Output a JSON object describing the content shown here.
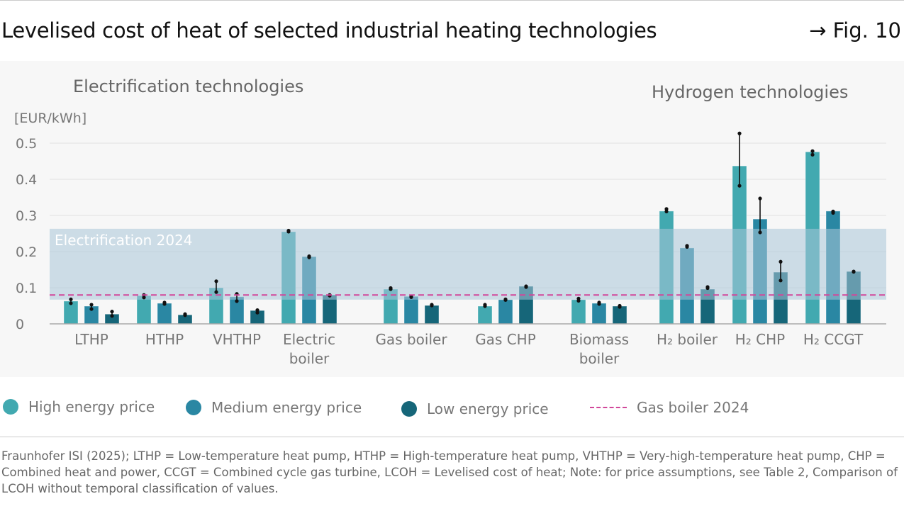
{
  "header": {
    "title": "Levelised cost of heat of selected industrial heating technologies",
    "fig_ref": "→ Fig. 10"
  },
  "chart_data": {
    "type": "bar",
    "ylabel": "[EUR/kWh]",
    "ylim": [
      0,
      0.5
    ],
    "yticks": [
      "0",
      "0.1",
      "0.2",
      "0.3",
      "0.4",
      "0.5"
    ],
    "grid": true,
    "sections": [
      "Electrification technologies",
      "Hydrogen technologies"
    ],
    "categories": [
      [
        "LTHP"
      ],
      [
        "HTHP"
      ],
      [
        "VHTHP"
      ],
      [
        "Electric",
        "boiler"
      ],
      [
        "Gas boiler"
      ],
      [
        "Gas CHP"
      ],
      [
        "Biomass",
        "boiler"
      ],
      [
        "H₂ boiler"
      ],
      [
        "H₂ CHP"
      ],
      [
        "H₂ CCGT"
      ]
    ],
    "series": [
      {
        "name": "High energy price",
        "color": "#42a9b0",
        "values": [
          0.063,
          0.078,
          0.1,
          0.255,
          0.096,
          0.049,
          0.067,
          0.312,
          0.437,
          0.476
        ],
        "ranges": [
          [
            0.057,
            0.068
          ],
          [
            0.073,
            0.08
          ],
          [
            0.088,
            0.118
          ],
          [
            0.255,
            0.258
          ],
          [
            0.096,
            0.099
          ],
          [
            0.049,
            0.053
          ],
          [
            0.064,
            0.07
          ],
          [
            0.311,
            0.318
          ],
          [
            0.382,
            0.527
          ],
          [
            0.468,
            0.478
          ]
        ]
      },
      {
        "name": "Medium energy price",
        "color": "#2a87a3",
        "values": [
          0.049,
          0.057,
          0.075,
          0.186,
          0.076,
          0.067,
          0.057,
          0.21,
          0.29,
          0.312
        ],
        "ranges": [
          [
            0.041,
            0.053
          ],
          [
            0.055,
            0.059
          ],
          [
            0.063,
            0.083
          ],
          [
            0.184,
            0.187
          ],
          [
            0.074,
            0.076
          ],
          [
            0.066,
            0.068
          ],
          [
            0.055,
            0.059
          ],
          [
            0.213,
            0.216
          ],
          [
            0.253,
            0.347
          ],
          [
            0.307,
            0.311
          ]
        ]
      },
      {
        "name": "Low energy price",
        "color": "#166679",
        "values": [
          0.027,
          0.025,
          0.037,
          0.08,
          0.051,
          0.104,
          0.049,
          0.096,
          0.143,
          0.145
        ],
        "ranges": [
          [
            0.022,
            0.034
          ],
          [
            0.024,
            0.027
          ],
          [
            0.031,
            0.038
          ],
          [
            0.078,
            0.08
          ],
          [
            0.051,
            0.053
          ],
          [
            0.102,
            0.104
          ],
          [
            0.047,
            0.05
          ],
          [
            0.099,
            0.102
          ],
          [
            0.12,
            0.172
          ],
          [
            0.144,
            0.145
          ]
        ]
      }
    ],
    "band": {
      "label": "Electrification 2024",
      "range": [
        0.067,
        0.263
      ],
      "color": "#cbdce6"
    },
    "reference_line": {
      "name": "Gas boiler 2024",
      "value": 0.08,
      "color": "#d1479a"
    }
  },
  "legend": [
    "High energy price",
    "Medium energy price",
    "Low energy price",
    "Gas boiler 2024"
  ],
  "footnote": "Fraunhofer ISI (2025); LTHP = Low-temperature heat pump, HTHP = High-temperature heat pump, VHTHP = Very-high-temperature heat pump, CHP = Combined heat and power, CCGT = Combined cycle gas turbine, LCOH = Levelised cost of heat; Note: for price assumptions, see Table 2, Comparison of LCOH without temporal classification of values."
}
